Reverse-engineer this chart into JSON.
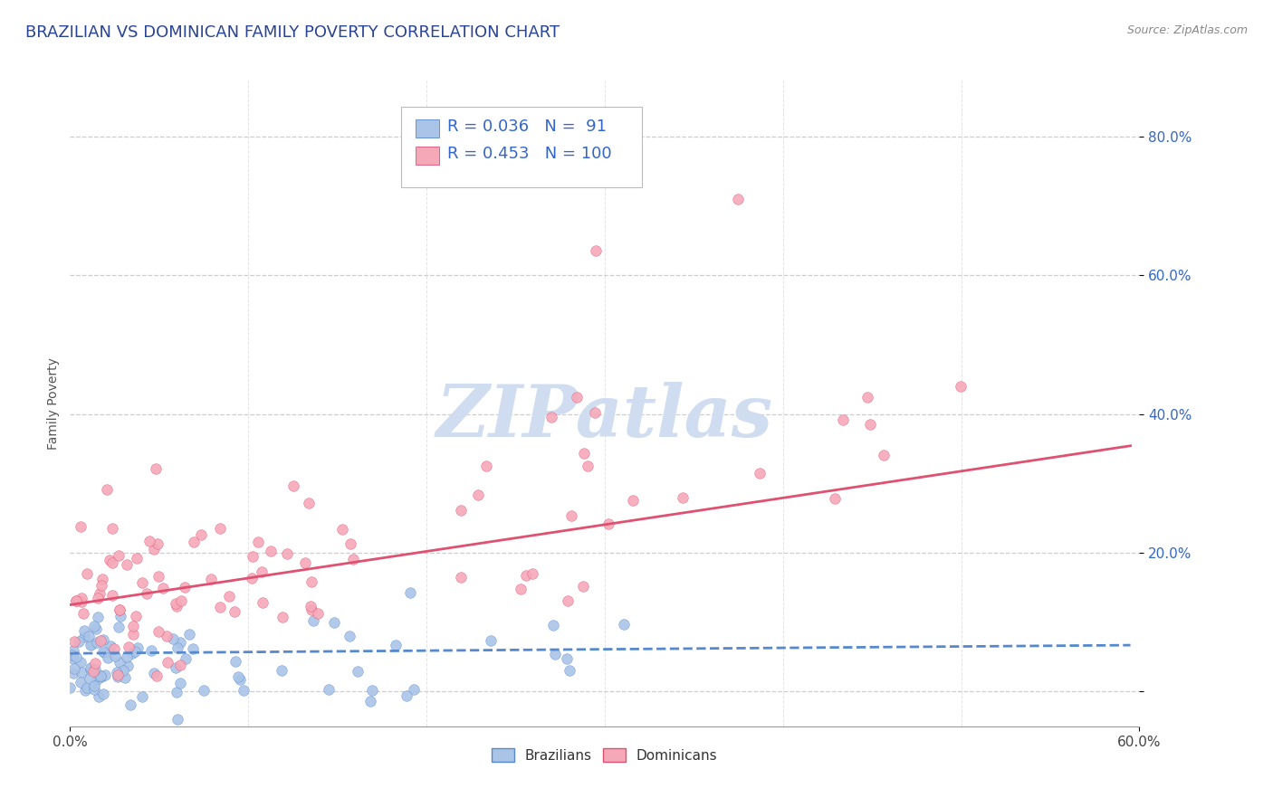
{
  "title": "BRAZILIAN VS DOMINICAN FAMILY POVERTY CORRELATION CHART",
  "source_text": "Source: ZipAtlas.com",
  "ylabel": "Family Poverty",
  "yticks": [
    0.0,
    0.2,
    0.4,
    0.6,
    0.8
  ],
  "ytick_labels": [
    "",
    "20.0%",
    "40.0%",
    "60.0%",
    "80.0%"
  ],
  "xlim": [
    0.0,
    0.6
  ],
  "ylim": [
    -0.05,
    0.88
  ],
  "brazilian_R": 0.036,
  "brazilian_N": 91,
  "dominican_R": 0.453,
  "dominican_N": 100,
  "scatter_blue_color": "#aac4e8",
  "scatter_pink_color": "#f5a8b8",
  "line_blue_color": "#5588cc",
  "line_pink_color": "#e05070",
  "grid_color": "#c8c8c8",
  "title_color": "#2a4494",
  "watermark_color": "#d0ddf0",
  "watermark_text": "ZIPatlas",
  "background_color": "#ffffff",
  "legend_text_color": "#3366cc",
  "axis_tick_color": "#3366cc",
  "title_fontsize": 13,
  "axis_label_fontsize": 10,
  "legend_fontsize": 13,
  "source_fontsize": 9
}
